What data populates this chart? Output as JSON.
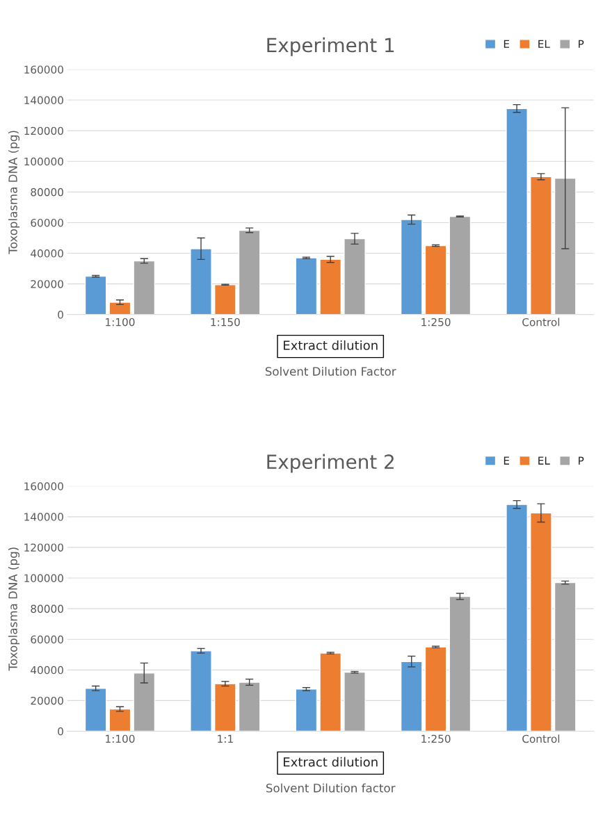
{
  "chart_data": [
    {
      "type": "bar",
      "title": "Experiment 1",
      "xlabel": "Solvent Dilution Factor",
      "ylabel": "Toxoplasma DNA (pg)",
      "categories": [
        "1:100",
        "1:150",
        null,
        "1:250",
        "Control"
      ],
      "ylim": [
        0,
        160000
      ],
      "yticks": [
        0,
        20000,
        40000,
        60000,
        80000,
        100000,
        120000,
        140000,
        160000
      ],
      "grid": "y",
      "legend": "top right",
      "annotations": [
        "Extract dilution"
      ],
      "series": [
        {
          "name": "E",
          "color": "#5b9bd5",
          "values": [
            25000,
            43000,
            37000,
            62000,
            134500
          ],
          "errors": [
            500,
            7000,
            500,
            3000,
            2500
          ]
        },
        {
          "name": "EL",
          "color": "#ed7d31",
          "values": [
            8000,
            19500,
            36000,
            45000,
            90000
          ],
          "errors": [
            1500,
            300,
            2000,
            500,
            2000
          ]
        },
        {
          "name": "P",
          "color": "#a5a5a5",
          "values": [
            35000,
            55000,
            49500,
            64000,
            89000
          ],
          "errors": [
            1500,
            1500,
            3500,
            300,
            46000
          ]
        }
      ]
    },
    {
      "type": "bar",
      "title": "Experiment 2",
      "xlabel": "Solvent Dilution factor",
      "ylabel": "Toxoplasma DNA (pg)",
      "categories": [
        "1:100",
        "1:1",
        null,
        "1:250",
        "Control"
      ],
      "ylim": [
        0,
        160000
      ],
      "yticks": [
        0,
        20000,
        40000,
        60000,
        80000,
        100000,
        120000,
        140000,
        160000
      ],
      "grid": "y",
      "legend": "top right",
      "annotations": [
        "Extract dilution"
      ],
      "series": [
        {
          "name": "E",
          "color": "#5b9bd5",
          "values": [
            28000,
            52500,
            27500,
            45500,
            148000
          ],
          "errors": [
            1500,
            1500,
            1000,
            3500,
            2500
          ]
        },
        {
          "name": "EL",
          "color": "#ed7d31",
          "values": [
            14500,
            31000,
            51000,
            55000,
            142500
          ],
          "errors": [
            1500,
            1500,
            500,
            500,
            6000
          ]
        },
        {
          "name": "P",
          "color": "#a5a5a5",
          "values": [
            38000,
            32000,
            38500,
            88000,
            97000
          ],
          "errors": [
            6500,
            2000,
            500,
            2000,
            1000
          ]
        }
      ]
    }
  ]
}
